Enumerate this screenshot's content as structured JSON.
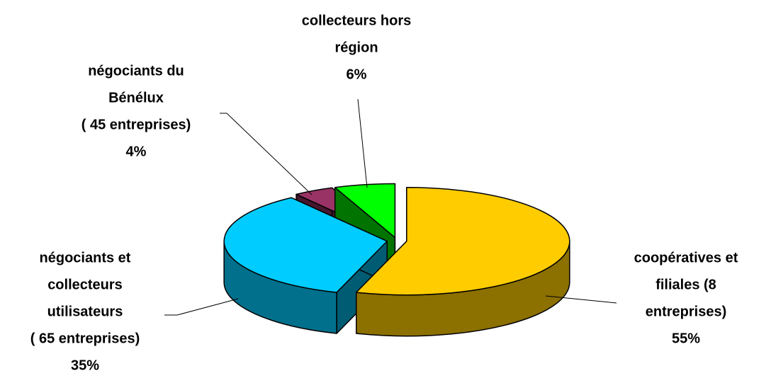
{
  "chart_data": {
    "type": "pie",
    "categories": [
      [
        "coopératives et",
        "filiales  (8",
        "entreprises)"
      ],
      [
        "négociants et",
        "collecteurs",
        "utilisateurs",
        "( 65 entreprises)"
      ],
      [
        "négociants du",
        "Bénélux",
        "( 45 entreprises)"
      ],
      [
        "collecteurs hors",
        "région"
      ]
    ],
    "values": [
      55,
      35,
      4,
      6
    ],
    "value_labels": [
      "55%",
      "35%",
      "4%",
      "6%"
    ],
    "colors": [
      "#ffcc00",
      "#00ccff",
      "#993366",
      "#00ff00"
    ]
  }
}
